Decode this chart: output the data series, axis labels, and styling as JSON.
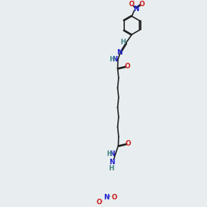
{
  "background_color": "#e8eef0",
  "bond_color": "#222222",
  "nitrogen_color": "#2222cc",
  "oxygen_color": "#cc2222",
  "hydrogen_color": "#4a8888",
  "fig_width": 3.0,
  "fig_height": 3.0,
  "dpi": 100,
  "xlim": [
    0,
    10
  ],
  "ylim": [
    0,
    10
  ],
  "lw": 1.3,
  "fs": 7.0,
  "benz_r": 0.58
}
